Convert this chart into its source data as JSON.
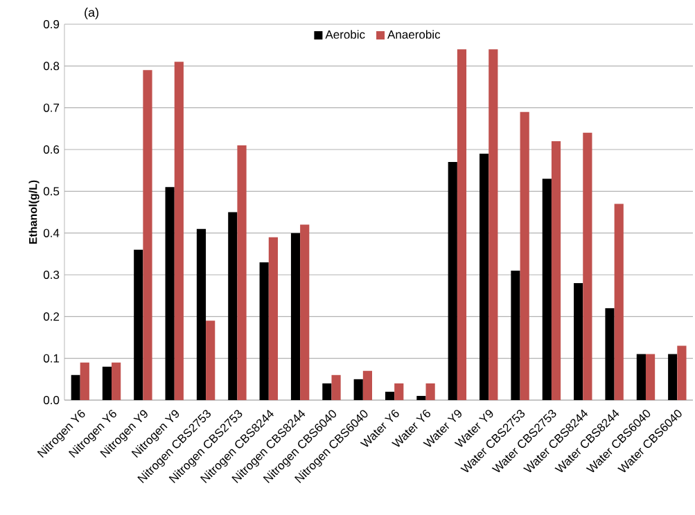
{
  "chart_data": {
    "type": "bar",
    "ylabel": "Ethanol(g/L)",
    "annotations": [
      "(a)"
    ],
    "categories": [
      "Nitrogen Y6",
      "Nitrogen Y6",
      "Nitrogen Y9",
      "Nitrogen Y9",
      "Nitrogen CBS2753",
      "Nitrogen CBS2753",
      "Nitrogen CBS8244",
      "Nitrogen CBS8244",
      "Nitrogen CBS6040",
      "Nitrogen CBS6040",
      "Water Y6",
      "Water Y6",
      "Water Y9",
      "Water Y9",
      "Water CBS2753",
      "Water CBS2753",
      "Water CBS8244",
      "Water CBS8244",
      "Water CBS6040",
      "Water CBS6040"
    ],
    "series": [
      {
        "name": "Aerobic",
        "color": "#000000",
        "values": [
          0.06,
          0.08,
          0.36,
          0.51,
          0.41,
          0.45,
          0.33,
          0.4,
          0.04,
          0.05,
          0.02,
          0.01,
          0.57,
          0.59,
          0.31,
          0.53,
          0.28,
          0.22,
          0.11,
          0.11
        ]
      },
      {
        "name": "Anaerobic",
        "color": "#c0504d",
        "values": [
          0.09,
          0.09,
          0.79,
          0.81,
          0.19,
          0.61,
          0.39,
          0.42,
          0.06,
          0.07,
          0.04,
          0.04,
          0.84,
          0.84,
          0.69,
          0.62,
          0.64,
          0.47,
          0.11,
          0.13
        ]
      }
    ],
    "ylim": [
      0,
      0.9
    ],
    "yticks": [
      {
        "value": 0,
        "label": "0.0"
      },
      0.1,
      0.2,
      0.3,
      0.4,
      0.5,
      0.6,
      0.7,
      0.8,
      0.9
    ],
    "grid": "y",
    "legend": "top"
  }
}
